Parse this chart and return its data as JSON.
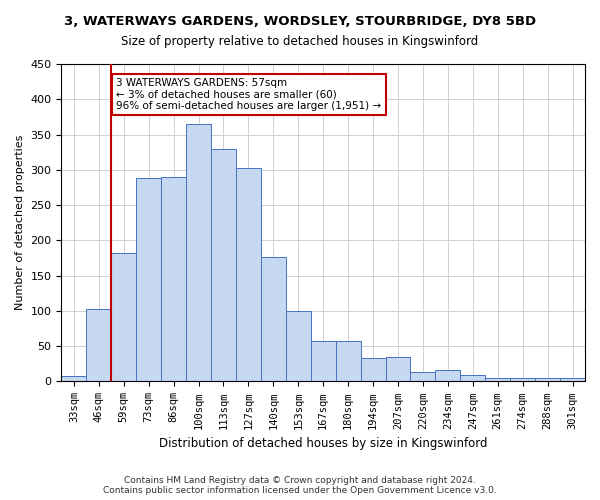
{
  "title_line1": "3, WATERWAYS GARDENS, WORDSLEY, STOURBRIDGE, DY8 5BD",
  "title_line2": "Size of property relative to detached houses in Kingswinford",
  "xlabel": "Distribution of detached houses by size in Kingswinford",
  "ylabel": "Number of detached properties",
  "categories": [
    "33sqm",
    "46sqm",
    "59sqm",
    "73sqm",
    "86sqm",
    "100sqm",
    "113sqm",
    "127sqm",
    "140sqm",
    "153sqm",
    "167sqm",
    "180sqm",
    "194sqm",
    "207sqm",
    "220sqm",
    "234sqm",
    "247sqm",
    "261sqm",
    "274sqm",
    "288sqm",
    "301sqm"
  ],
  "values": [
    8,
    103,
    182,
    288,
    290,
    365,
    330,
    302,
    176,
    100,
    58,
    58,
    33,
    35,
    13,
    16,
    9,
    5,
    5,
    5,
    5
  ],
  "bar_color": "#c6d9f1",
  "bar_edge_color": "#4472c4",
  "vline_x_index": 1.5,
  "vline_color": "#c00000",
  "annotation_text": "3 WATERWAYS GARDENS: 57sqm\n← 3% of detached houses are smaller (60)\n96% of semi-detached houses are larger (1,951) →",
  "annotation_box_color": "#ffffff",
  "annotation_box_edge": "#c00000",
  "footer_text": "Contains HM Land Registry data © Crown copyright and database right 2024.\nContains public sector information licensed under the Open Government Licence v3.0.",
  "ylim": [
    0,
    450
  ],
  "yticks": [
    0,
    50,
    100,
    150,
    200,
    250,
    300,
    350,
    400,
    450
  ],
  "bg_color": "#ffffff",
  "grid_color": "#d0d0d0"
}
